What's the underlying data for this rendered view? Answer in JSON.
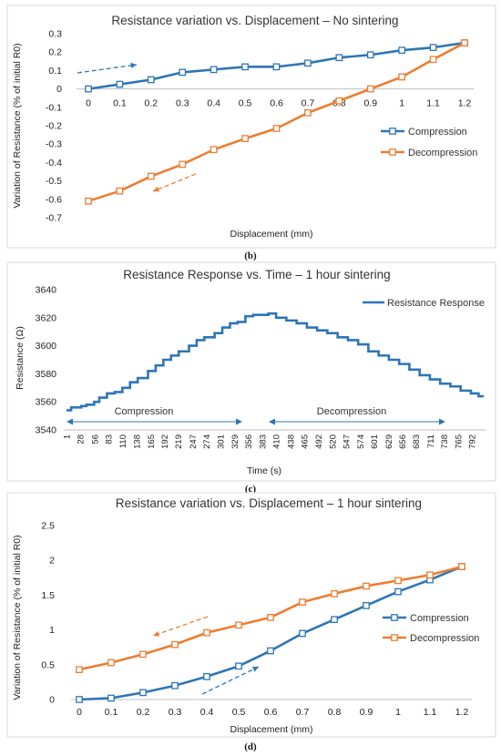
{
  "colors": {
    "compression": "#2E75B6",
    "decompression": "#ED7D31",
    "response": "#2E75B6"
  },
  "panel_b": {
    "caption": "(b)"
  },
  "panel_c": {
    "caption": "(c)"
  },
  "panel_d": {
    "caption": "(d)"
  },
  "chart_data": [
    {
      "type": "line",
      "title": "Resistance variation vs. Displacement – No sintering",
      "xlabel": "Displacement (mm)",
      "ylabel": "Variation of Resistance (% of initial R0)",
      "x": [
        0,
        0.1,
        0.2,
        0.3,
        0.4,
        0.5,
        0.6,
        0.7,
        0.8,
        0.9,
        1,
        1.1,
        1.2
      ],
      "ylim": [
        -0.7,
        0.3
      ],
      "yticks": [
        "0.3",
        "0.2",
        "0.1",
        "0",
        "-0.1",
        "-0.2",
        "-0.3",
        "-0.4",
        "-0.5",
        "-0.6",
        "-0.7"
      ],
      "legend_position": "right",
      "series": [
        {
          "name": "Compression",
          "values": [
            0.0,
            0.025,
            0.05,
            0.09,
            0.105,
            0.12,
            0.12,
            0.14,
            0.17,
            0.185,
            0.21,
            0.225,
            0.25
          ]
        },
        {
          "name": "Decompression",
          "values": [
            -0.61,
            -0.555,
            -0.475,
            -0.41,
            -0.33,
            -0.27,
            -0.215,
            -0.13,
            -0.065,
            0.0,
            0.065,
            0.16,
            0.25
          ]
        }
      ]
    },
    {
      "type": "line",
      "title": "Resistance Response vs. Time –  1 hour sintering",
      "xlabel": "Time (s)",
      "ylabel": "Resistance (Ω)",
      "xlim": [
        1,
        815
      ],
      "xticks": [
        "1",
        "28",
        "56",
        "83",
        "110",
        "138",
        "165",
        "192",
        "219",
        "247",
        "274",
        "301",
        "329",
        "356",
        "383",
        "410",
        "438",
        "465",
        "492",
        "520",
        "547",
        "574",
        "601",
        "629",
        "656",
        "683",
        "711",
        "738",
        "765",
        "792"
      ],
      "ylim": [
        3540,
        3640
      ],
      "yticks": [
        "3640",
        "3620",
        "3600",
        "3580",
        "3560",
        "3540"
      ],
      "legend_position": "top-right",
      "annotations": [
        "Compression",
        "Decompression"
      ],
      "series": [
        {
          "name": "Resistance Response",
          "x": [
            1,
            10,
            20,
            30,
            40,
            55,
            65,
            80,
            95,
            110,
            125,
            140,
            160,
            175,
            190,
            205,
            220,
            240,
            255,
            270,
            290,
            305,
            320,
            335,
            350,
            365,
            380,
            395,
            410,
            430,
            450,
            470,
            490,
            510,
            530,
            550,
            570,
            590,
            610,
            630,
            650,
            670,
            690,
            710,
            730,
            750,
            770,
            790,
            805,
            815
          ],
          "values": [
            3554,
            3556,
            3556,
            3557,
            3558,
            3560,
            3563,
            3566,
            3567,
            3570,
            3574,
            3577,
            3582,
            3586,
            3590,
            3593,
            3596,
            3600,
            3604,
            3606,
            3609,
            3613,
            3616,
            3617,
            3621,
            3622,
            3622,
            3623,
            3620,
            3618,
            3616,
            3613,
            3611,
            3609,
            3606,
            3604,
            3601,
            3596,
            3593,
            3590,
            3587,
            3583,
            3579,
            3576,
            3573,
            3571,
            3568,
            3566,
            3564,
            3564
          ]
        }
      ]
    },
    {
      "type": "line",
      "title": "Resistance variation vs. Displacement – 1 hour sintering",
      "xlabel": "Displacement (mm)",
      "ylabel": "Variation of Resistance (% of initial R0)",
      "x": [
        0,
        0.1,
        0.2,
        0.3,
        0.4,
        0.5,
        0.6,
        0.7,
        0.8,
        0.9,
        1,
        1.1,
        1.2
      ],
      "ylim": [
        0,
        2.5
      ],
      "yticks": [
        "2.5",
        "2",
        "1.5",
        "1",
        "0.5",
        "0"
      ],
      "legend_position": "right",
      "series": [
        {
          "name": "Compression",
          "values": [
            0.0,
            0.02,
            0.1,
            0.2,
            0.33,
            0.48,
            0.7,
            0.95,
            1.15,
            1.35,
            1.55,
            1.72,
            1.91
          ]
        },
        {
          "name": "Decompression",
          "values": [
            0.43,
            0.53,
            0.65,
            0.79,
            0.96,
            1.07,
            1.18,
            1.4,
            1.52,
            1.63,
            1.71,
            1.79,
            1.91
          ]
        }
      ]
    }
  ]
}
